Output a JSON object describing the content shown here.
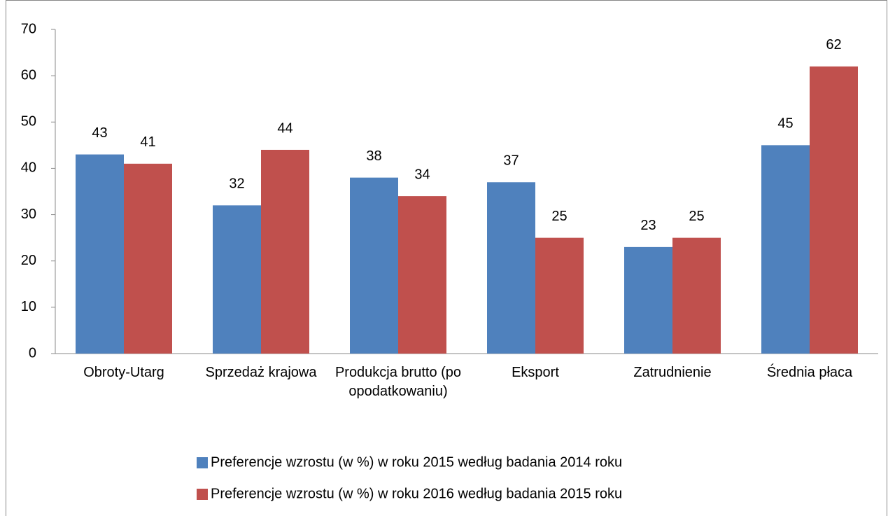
{
  "chart_data": {
    "type": "bar",
    "categories": [
      "Obroty-Utarg",
      "Sprzedaż krajowa",
      "Produkcja brutto (po opodatkowaniu)",
      "Eksport",
      "Zatrudnienie",
      "Średnia płaca"
    ],
    "series": [
      {
        "name": "Preferencje wzrostu (w %) w roku 2015 według badania 2014 roku",
        "color": "#4f81bd",
        "values": [
          43,
          32,
          38,
          37,
          23,
          45
        ]
      },
      {
        "name": "Preferencje wzrostu (w %) w roku 2016 według badania 2015 roku",
        "color": "#c0504d",
        "values": [
          41,
          44,
          34,
          25,
          25,
          62
        ]
      }
    ],
    "ylim": [
      0,
      70
    ],
    "yticks": [
      0,
      10,
      20,
      30,
      40,
      50,
      60,
      70
    ],
    "grid": false,
    "legend": "bottom"
  }
}
